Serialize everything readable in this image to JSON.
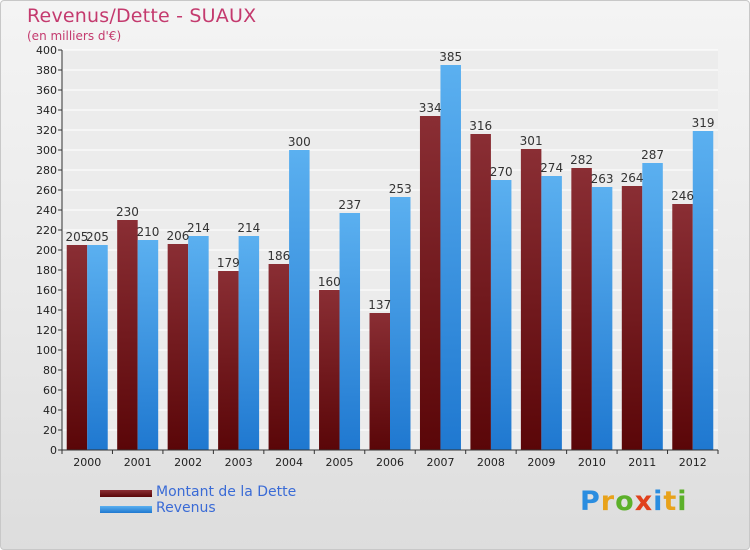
{
  "header": {
    "title": "Revenus/Dette - SUAUX",
    "subtitle": "(en milliers d'€)"
  },
  "legend": {
    "items": [
      {
        "label": "Montant de la Dette",
        "color": "#6a0e10"
      },
      {
        "label": "Revenus",
        "color": "#3d8fe0"
      }
    ]
  },
  "logo": {
    "text": "Proxiti",
    "letters": [
      {
        "ch": "P",
        "color": "#2a8de0"
      },
      {
        "ch": "r",
        "color": "#e8a21a"
      },
      {
        "ch": "o",
        "color": "#5cb02a"
      },
      {
        "ch": "x",
        "color": "#e0401c"
      },
      {
        "ch": "i",
        "color": "#2a8de0"
      },
      {
        "ch": "t",
        "color": "#e8a21a"
      },
      {
        "ch": "i",
        "color": "#5cb02a"
      }
    ]
  },
  "chart_data": {
    "type": "bar",
    "title": "Revenus/Dette - SUAUX",
    "subtitle": "(en milliers d'€)",
    "categories": [
      "2000",
      "2001",
      "2002",
      "2003",
      "2004",
      "2005",
      "2006",
      "2007",
      "2008",
      "2009",
      "2010",
      "2011",
      "2012"
    ],
    "series": [
      {
        "name": "Montant de la Dette",
        "color_top": "#8a2e34",
        "color_bottom": "#5a0608",
        "values": [
          205,
          230,
          206,
          179,
          186,
          160,
          137,
          334,
          316,
          301,
          282,
          264,
          246
        ],
        "labels": [
          "205",
          "230",
          "206",
          "179",
          "186",
          "160",
          "137",
          "334",
          "316",
          "301",
          "282",
          "264",
          "246"
        ]
      },
      {
        "name": "Revenus",
        "color_top": "#5bb0f0",
        "color_bottom": "#1f78d0",
        "values": [
          205,
          210,
          214,
          214,
          300,
          237,
          253,
          385,
          270,
          274,
          263,
          287,
          319
        ],
        "labels": [
          "205",
          "210",
          "214",
          "214",
          "300",
          "237",
          "253",
          "385",
          "270",
          "274",
          "263",
          "287",
          "319"
        ]
      }
    ],
    "ylim": [
      0,
      400
    ],
    "yticks": [
      0,
      20,
      40,
      60,
      80,
      100,
      120,
      140,
      160,
      180,
      200,
      220,
      240,
      260,
      280,
      300,
      320,
      340,
      360,
      380,
      400
    ],
    "grid": true,
    "legend_position": "bottom-left"
  }
}
